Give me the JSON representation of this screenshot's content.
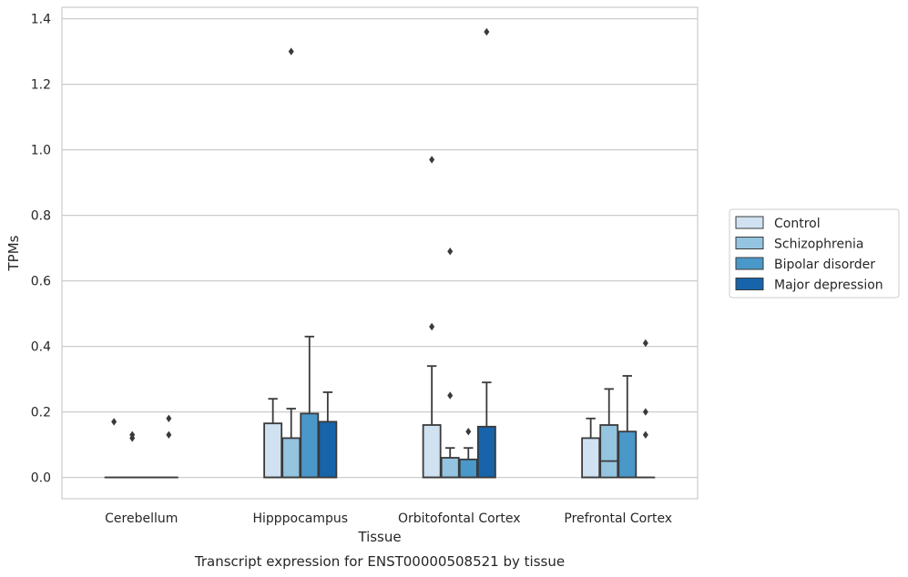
{
  "chart_data": {
    "type": "box",
    "xlabel": "Tissue",
    "ylabel": "TPMs",
    "caption": "Transcript expression for ENST00000508521 by tissue",
    "ylim": [
      -0.065,
      1.435
    ],
    "yticks": [
      "0.0",
      "0.2",
      "0.4",
      "0.6",
      "0.8",
      "1.0",
      "1.2",
      "1.4"
    ],
    "ytick_values": [
      0.0,
      0.2,
      0.4,
      0.6,
      0.8,
      1.0,
      1.2,
      1.4
    ],
    "grid": "horizontal",
    "legend_position": "right",
    "categories": [
      "Cerebellum",
      "Hipppocampus",
      "Orbitofontal Cortex",
      "Prefrontal Cortex"
    ],
    "series": [
      {
        "name": "Control",
        "color": "#d0e1f2",
        "boxes": [
          {
            "whislo": 0,
            "q1": 0,
            "med": 0,
            "q3": 0,
            "whishi": 0,
            "fliers": [
              0.17
            ]
          },
          {
            "whislo": 0,
            "q1": 0,
            "med": 0,
            "q3": 0.165,
            "whishi": 0.24,
            "fliers": []
          },
          {
            "whislo": 0,
            "q1": 0,
            "med": 0,
            "q3": 0.16,
            "whishi": 0.34,
            "fliers": [
              0.46,
              0.97
            ]
          },
          {
            "whislo": 0,
            "q1": 0,
            "med": 0,
            "q3": 0.12,
            "whishi": 0.18,
            "fliers": []
          }
        ]
      },
      {
        "name": "Schizophrenia",
        "color": "#94c4df",
        "boxes": [
          {
            "whislo": 0,
            "q1": 0,
            "med": 0,
            "q3": 0,
            "whishi": 0,
            "fliers": [
              0.12,
              0.13
            ]
          },
          {
            "whislo": 0,
            "q1": 0,
            "med": 0,
            "q3": 0.12,
            "whishi": 0.21,
            "fliers": [
              1.3
            ]
          },
          {
            "whislo": 0,
            "q1": 0,
            "med": 0,
            "q3": 0.06,
            "whishi": 0.09,
            "fliers": [
              0.25,
              0.69
            ]
          },
          {
            "whislo": 0,
            "q1": 0,
            "med": 0.05,
            "q3": 0.16,
            "whishi": 0.27,
            "fliers": []
          }
        ]
      },
      {
        "name": "Bipolar disorder",
        "color": "#4a98c9",
        "boxes": [
          {
            "whislo": 0,
            "q1": 0,
            "med": 0,
            "q3": 0,
            "whishi": 0,
            "fliers": []
          },
          {
            "whislo": 0,
            "q1": 0,
            "med": 0,
            "q3": 0.195,
            "whishi": 0.43,
            "fliers": []
          },
          {
            "whislo": 0,
            "q1": 0,
            "med": 0,
            "q3": 0.055,
            "whishi": 0.09,
            "fliers": [
              0.14
            ]
          },
          {
            "whislo": 0,
            "q1": 0,
            "med": 0,
            "q3": 0.14,
            "whishi": 0.31,
            "fliers": []
          }
        ]
      },
      {
        "name": "Major depression",
        "color": "#1764ab",
        "boxes": [
          {
            "whislo": 0,
            "q1": 0,
            "med": 0,
            "q3": 0,
            "whishi": 0,
            "fliers": [
              0.13,
              0.18
            ]
          },
          {
            "whislo": 0,
            "q1": 0,
            "med": 0,
            "q3": 0.17,
            "whishi": 0.26,
            "fliers": []
          },
          {
            "whislo": 0,
            "q1": 0,
            "med": 0,
            "q3": 0.155,
            "whishi": 0.29,
            "fliers": [
              1.36
            ]
          },
          {
            "whislo": 0,
            "q1": 0,
            "med": 0,
            "q3": 0,
            "whishi": 0,
            "fliers": [
              0.13,
              0.2,
              0.41
            ]
          }
        ]
      }
    ]
  }
}
